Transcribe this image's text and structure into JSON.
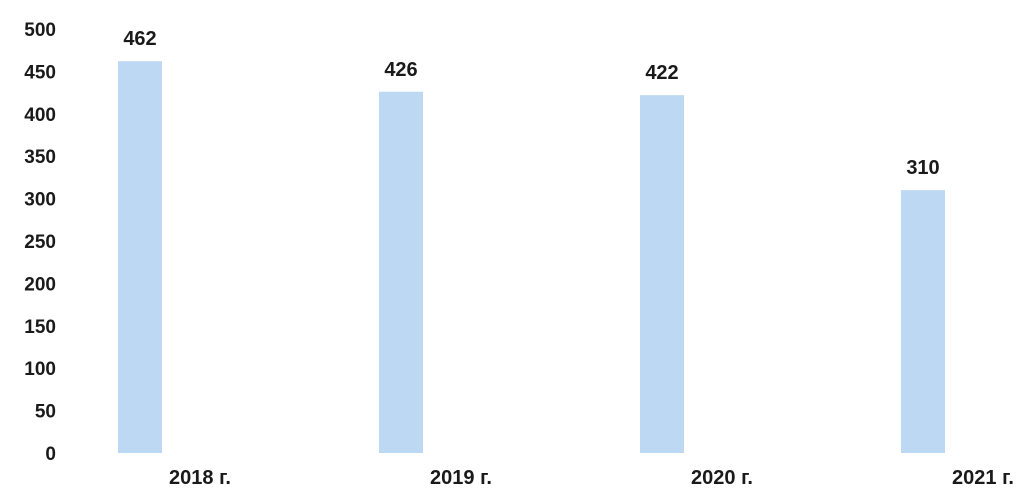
{
  "chart_data": {
    "type": "bar",
    "categories": [
      "2018 г.",
      "2019 г.",
      "2020 г.",
      "2021 г."
    ],
    "values": [
      462,
      426,
      422,
      310
    ],
    "data_labels": [
      "462",
      "426",
      "422",
      "310"
    ],
    "title": "",
    "xlabel": "",
    "ylabel": "",
    "ylim": [
      0,
      500
    ],
    "y_ticks": [
      0,
      50,
      100,
      150,
      200,
      250,
      300,
      350,
      400,
      450,
      500
    ],
    "y_tick_labels": [
      "0",
      "50",
      "100",
      "150",
      "200",
      "250",
      "300",
      "350",
      "400",
      "450",
      "500"
    ],
    "grid": false,
    "legend": "none",
    "bar_color": "#bcd8f2"
  }
}
